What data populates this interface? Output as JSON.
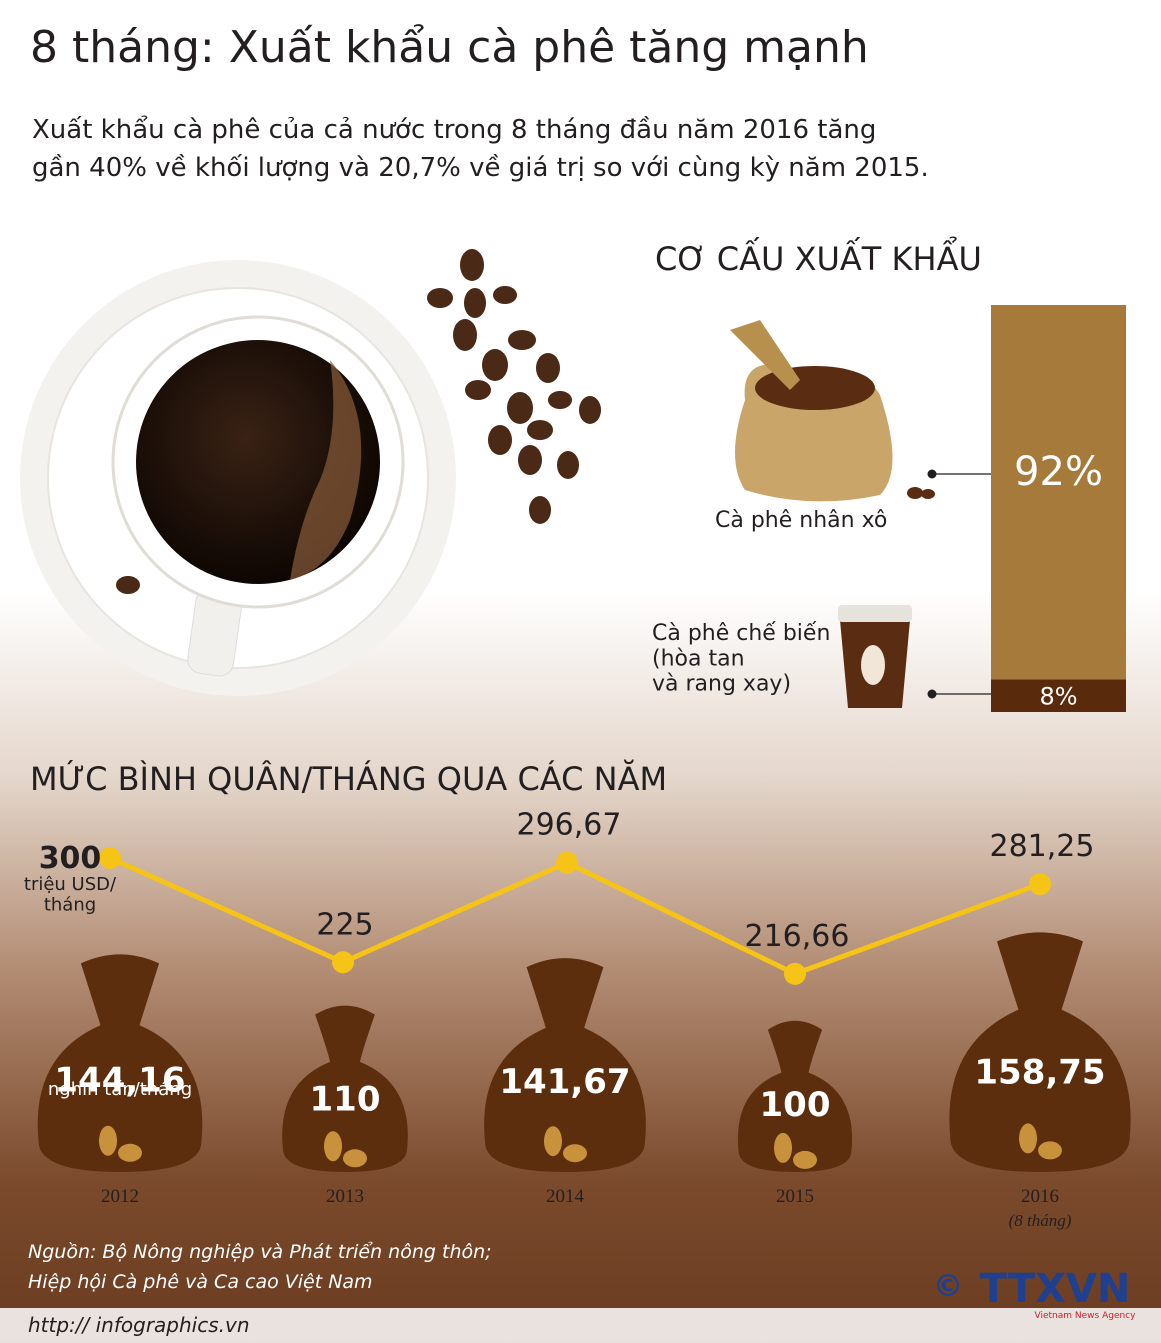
{
  "title": "8 tháng: Xuất khẩu cà phê tăng mạnh",
  "subtitle": [
    "Xuất khẩu cà phê của cả nước trong 8 tháng đầu năm 2016 tăng",
    "gần 40% về khối lượng và 20,7% về giá trị so với cùng kỳ năm 2015."
  ],
  "chart_data": [
    {
      "type": "stacked-bar",
      "title": "CƠ CẤU XUẤT KHẨU",
      "series": [
        {
          "name": "Cà phê nhân xô",
          "color": "#a57a3a",
          "values": [
            92
          ],
          "value_labels": [
            "92%"
          ]
        },
        {
          "name": "Cà phê chế biến\n(hòa tan\nvà rang xay)",
          "color": "#5a2a0c",
          "values": [
            8
          ],
          "value_labels": [
            "8%"
          ]
        }
      ]
    },
    {
      "type": "line",
      "title": "MỨC BÌNH QUÂN/THÁNG QUA CÁC NĂM",
      "categories": [
        "2012",
        "2013",
        "2014",
        "2015",
        "2016"
      ],
      "category_notes": [
        null,
        null,
        null,
        null,
        "(8 tháng)"
      ],
      "series": [
        {
          "name": "triệu USD/\ntháng",
          "color": "#f6c417",
          "values": [
            300,
            225,
            296.67,
            216.66,
            281.25
          ],
          "value_labels": [
            "300",
            "225",
            "296,67",
            "216,66",
            "281,25"
          ]
        },
        {
          "name": "nghìn tấn/tháng",
          "color": "#5c2e0e",
          "values": [
            144.16,
            110,
            141.67,
            100,
            158.75
          ],
          "value_labels": [
            "144,16",
            "110",
            "141,67",
            "100",
            "158,75"
          ]
        }
      ]
    }
  ],
  "source": [
    "Nguồn: Bộ Nông nghiệp và Phát triển nông thôn;",
    "Hiệp hội Cà phê và Ca cao Việt Nam"
  ],
  "footer": "http:// infographics.vn",
  "logo": {
    "copyright": "©",
    "name": "TTXVN",
    "tagline": "Vietnam News Agency"
  }
}
